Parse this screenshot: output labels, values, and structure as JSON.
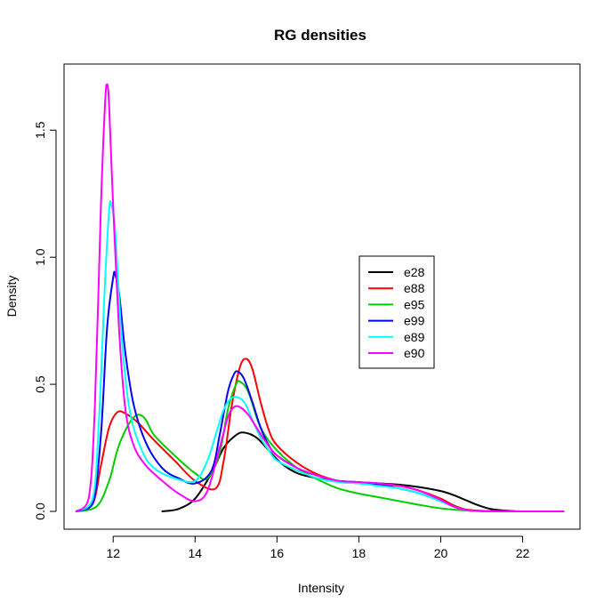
{
  "chart_data": {
    "type": "line",
    "title": "RG densities",
    "xlabel": "Intensity",
    "ylabel": "Density",
    "xlim": [
      10.8,
      23.4
    ],
    "ylim": [
      -0.07,
      1.76
    ],
    "x_ticks": [
      12,
      14,
      16,
      18,
      20,
      22
    ],
    "y_ticks": [
      0.0,
      0.5,
      1.0,
      1.5
    ],
    "y_tick_labels": [
      "0.0",
      "0.5",
      "1.0",
      "1.5"
    ],
    "grid": false,
    "legend_position": "center-right",
    "series": [
      {
        "name": "e28",
        "color": "#000000",
        "x": [
          13.2,
          13.6,
          14.0,
          14.4,
          14.7,
          15.0,
          15.2,
          15.5,
          15.8,
          16.1,
          16.5,
          17.0,
          17.5,
          18.0,
          18.5,
          19.0,
          19.5,
          20.0,
          20.3,
          20.6,
          20.9,
          21.2,
          21.5,
          21.8,
          22.0
        ],
        "values": [
          0.0,
          0.01,
          0.05,
          0.15,
          0.25,
          0.3,
          0.31,
          0.29,
          0.24,
          0.19,
          0.15,
          0.13,
          0.12,
          0.115,
          0.11,
          0.105,
          0.095,
          0.08,
          0.065,
          0.045,
          0.025,
          0.01,
          0.004,
          0.001,
          0.0
        ]
      },
      {
        "name": "e88",
        "color": "#FF0000",
        "x": [
          11.1,
          11.5,
          11.7,
          11.9,
          12.1,
          12.3,
          12.6,
          13.0,
          13.5,
          14.0,
          14.5,
          14.7,
          14.9,
          15.1,
          15.25,
          15.4,
          15.6,
          15.8,
          16.0,
          16.5,
          17.0,
          17.5,
          18.0,
          18.5,
          19.0,
          19.5,
          20.0,
          20.3,
          20.6,
          21.0,
          21.3
        ],
        "values": [
          0.0,
          0.03,
          0.18,
          0.33,
          0.39,
          0.385,
          0.35,
          0.28,
          0.2,
          0.12,
          0.09,
          0.2,
          0.42,
          0.57,
          0.6,
          0.56,
          0.43,
          0.32,
          0.26,
          0.19,
          0.145,
          0.12,
          0.11,
          0.105,
          0.1,
          0.08,
          0.05,
          0.025,
          0.008,
          0.002,
          0.0
        ]
      },
      {
        "name": "e95",
        "color": "#00CD00",
        "x": [
          11.1,
          11.6,
          11.9,
          12.1,
          12.3,
          12.5,
          12.65,
          12.8,
          13.0,
          13.5,
          14.0,
          14.3,
          14.6,
          14.8,
          15.0,
          15.1,
          15.3,
          15.6,
          16.0,
          16.5,
          17.0,
          17.5,
          18.0,
          18.5,
          19.0,
          19.5,
          20.0,
          20.5,
          21.0,
          22.0,
          23.0
        ],
        "values": [
          0.0,
          0.02,
          0.12,
          0.24,
          0.32,
          0.37,
          0.38,
          0.36,
          0.3,
          0.22,
          0.15,
          0.13,
          0.23,
          0.4,
          0.5,
          0.51,
          0.47,
          0.33,
          0.24,
          0.17,
          0.125,
          0.09,
          0.07,
          0.055,
          0.04,
          0.025,
          0.012,
          0.005,
          0.002,
          0.0,
          0.0
        ]
      },
      {
        "name": "e99",
        "color": "#0000FF",
        "x": [
          11.1,
          11.5,
          11.7,
          11.85,
          12.0,
          12.05,
          12.15,
          12.3,
          12.5,
          12.8,
          13.2,
          13.6,
          14.0,
          14.4,
          14.6,
          14.8,
          14.95,
          15.05,
          15.2,
          15.4,
          15.6,
          15.8,
          16.0,
          16.5,
          17.0,
          17.5,
          18.0,
          18.5,
          19.0,
          19.5,
          20.0,
          20.3,
          20.6,
          21.0,
          22.0,
          23.0
        ],
        "values": [
          0.0,
          0.03,
          0.3,
          0.72,
          0.92,
          0.93,
          0.85,
          0.62,
          0.42,
          0.27,
          0.17,
          0.13,
          0.11,
          0.16,
          0.3,
          0.47,
          0.54,
          0.55,
          0.52,
          0.43,
          0.33,
          0.26,
          0.22,
          0.17,
          0.14,
          0.12,
          0.115,
          0.105,
          0.09,
          0.07,
          0.04,
          0.02,
          0.005,
          0.001,
          0.0,
          0.0
        ]
      },
      {
        "name": "e89",
        "color": "#00FFFF",
        "x": [
          11.1,
          11.5,
          11.65,
          11.8,
          11.9,
          11.95,
          12.05,
          12.2,
          12.4,
          12.7,
          13.0,
          13.5,
          14.0,
          14.3,
          14.5,
          14.7,
          14.85,
          15.0,
          15.2,
          15.4,
          15.6,
          15.8,
          16.0,
          16.5,
          17.0,
          17.5,
          18.0,
          18.5,
          19.0,
          19.5,
          20.0,
          20.3,
          20.6,
          21.0,
          22.0,
          23.0
        ],
        "values": [
          0.0,
          0.05,
          0.35,
          0.9,
          1.18,
          1.21,
          1.1,
          0.7,
          0.4,
          0.24,
          0.17,
          0.13,
          0.12,
          0.2,
          0.3,
          0.4,
          0.44,
          0.45,
          0.43,
          0.36,
          0.29,
          0.24,
          0.2,
          0.16,
          0.13,
          0.115,
          0.11,
          0.1,
          0.09,
          0.07,
          0.04,
          0.02,
          0.005,
          0.001,
          0.0,
          0.0
        ]
      },
      {
        "name": "e90",
        "color": "#FF00FF",
        "x": [
          11.1,
          11.4,
          11.55,
          11.7,
          11.8,
          11.85,
          11.9,
          12.0,
          12.15,
          12.3,
          12.5,
          12.8,
          13.2,
          13.6,
          14.0,
          14.3,
          14.6,
          14.8,
          14.95,
          15.1,
          15.3,
          15.5,
          15.7,
          16.0,
          16.5,
          17.0,
          17.5,
          18.0,
          18.5,
          19.0,
          19.5,
          20.0,
          20.3,
          20.6,
          21.0,
          22.0,
          23.0
        ],
        "values": [
          0.0,
          0.05,
          0.4,
          1.2,
          1.6,
          1.68,
          1.6,
          1.2,
          0.7,
          0.4,
          0.26,
          0.18,
          0.12,
          0.07,
          0.04,
          0.08,
          0.25,
          0.37,
          0.41,
          0.41,
          0.38,
          0.33,
          0.28,
          0.22,
          0.17,
          0.14,
          0.12,
          0.115,
          0.11,
          0.1,
          0.08,
          0.045,
          0.02,
          0.006,
          0.001,
          0.0,
          0.0
        ]
      }
    ]
  }
}
